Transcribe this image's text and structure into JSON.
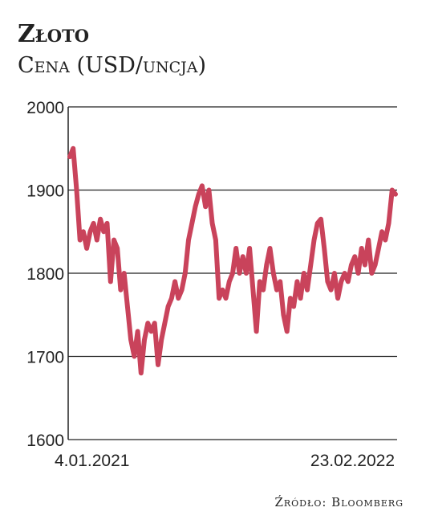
{
  "chart_data": {
    "type": "line",
    "title": "Złoto",
    "subtitle": "Cena (USD/uncja)",
    "source": "Źródło: Bloomberg",
    "categories": [
      "4.01.2021",
      null,
      null,
      null,
      null,
      null,
      null,
      null,
      null,
      null,
      null,
      null,
      null,
      null,
      null,
      null,
      null,
      null,
      null,
      null,
      null,
      null,
      null,
      null,
      null,
      null,
      null,
      null,
      null,
      null,
      null,
      null,
      null,
      null,
      null,
      null,
      null,
      null,
      null,
      null,
      null,
      null,
      null,
      null,
      null,
      null,
      null,
      null,
      null,
      null,
      null,
      null,
      null,
      null,
      null,
      null,
      null,
      null,
      null,
      null,
      null,
      null,
      null,
      null,
      null,
      null,
      null,
      null,
      null,
      null,
      null,
      null,
      null,
      null,
      null,
      null,
      null,
      null,
      null,
      null,
      null,
      null,
      null,
      null,
      null,
      null,
      null,
      null,
      null,
      null,
      null,
      null,
      null,
      null,
      null,
      null,
      "23.02.2022"
    ],
    "series": [
      {
        "color": "#c9435b",
        "values": [
          1940,
          1950,
          1900,
          1840,
          1850,
          1830,
          1850,
          1860,
          1840,
          1865,
          1850,
          1860,
          1790,
          1840,
          1830,
          1780,
          1800,
          1760,
          1720,
          1700,
          1730,
          1680,
          1720,
          1740,
          1730,
          1740,
          1690,
          1720,
          1740,
          1760,
          1770,
          1790,
          1770,
          1780,
          1800,
          1840,
          1860,
          1880,
          1895,
          1905,
          1880,
          1900,
          1860,
          1840,
          1770,
          1780,
          1770,
          1790,
          1800,
          1830,
          1800,
          1820,
          1800,
          1830,
          1780,
          1730,
          1790,
          1780,
          1810,
          1830,
          1800,
          1780,
          1790,
          1750,
          1730,
          1770,
          1760,
          1790,
          1770,
          1800,
          1780,
          1810,
          1840,
          1860,
          1865,
          1830,
          1790,
          1780,
          1800,
          1770,
          1790,
          1800,
          1790,
          1810,
          1820,
          1800,
          1830,
          1810,
          1840,
          1800,
          1810,
          1830,
          1850,
          1840,
          1860,
          1900,
          1895
        ]
      }
    ],
    "ylim": [
      1600,
      2000
    ],
    "yticks": [
      1600,
      1700,
      1800,
      1900,
      2000
    ],
    "grid": true
  }
}
